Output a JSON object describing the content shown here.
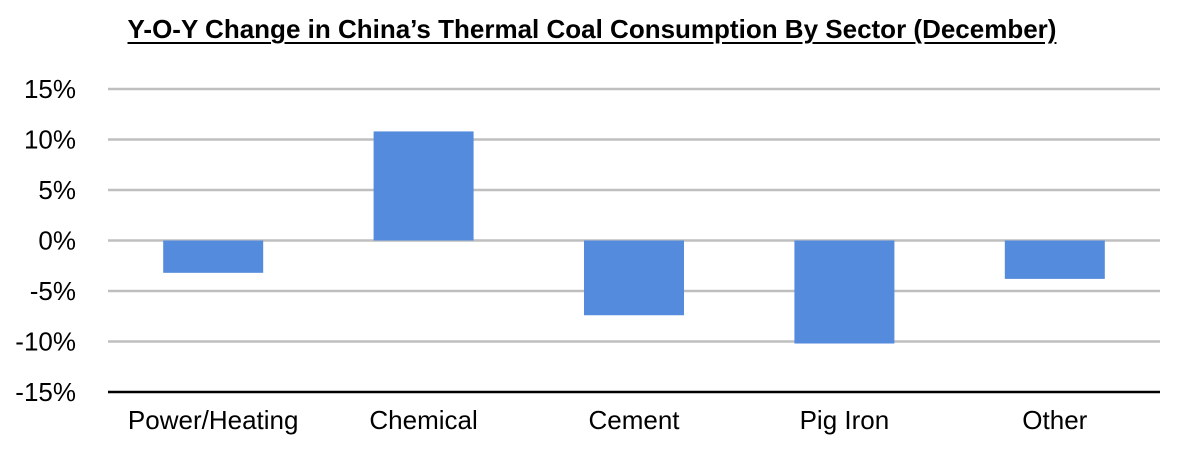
{
  "chart_data": {
    "type": "bar",
    "title": "Y-O-Y Change in China’s Thermal Coal Consumption By Sector (December)",
    "xlabel": "",
    "ylabel": "",
    "categories": [
      "Power/Heating",
      "Chemical",
      "Cement",
      "Pig Iron",
      "Other"
    ],
    "values": [
      -3.2,
      10.8,
      -7.4,
      -10.2,
      -3.8
    ],
    "ylim": [
      -15,
      15
    ],
    "yticks": [
      15,
      10,
      5,
      0,
      -5,
      -10,
      -15
    ],
    "ytick_labels": [
      "15%",
      "10%",
      "5%",
      "0%",
      "-5%",
      "-10%",
      "-15%"
    ],
    "grid": true,
    "legend": "none",
    "bar_color": "#558bdc",
    "grid_color": "#bfbfbf",
    "axis_color": "#000000"
  }
}
